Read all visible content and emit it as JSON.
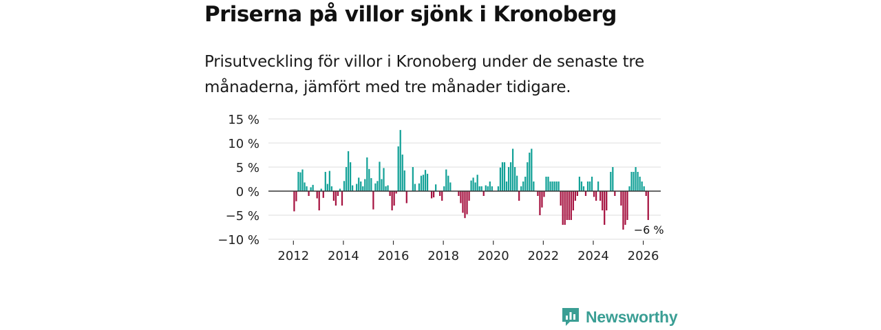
{
  "title": "Priserna på villor sjönk i Kronoberg",
  "subtitle": "Prisutveckling för villor i Kronoberg under de senaste tre månaderna, jämfört med tre månader tidigare.",
  "brand": {
    "name": "Newsworthy",
    "icon": "newsworthy-logo-icon",
    "color": "#3a9e94"
  },
  "colors": {
    "positive": "#12a197",
    "negative": "#a5113f",
    "grid": "#dddddd",
    "zero": "#333333"
  },
  "chart_data": {
    "type": "bar",
    "title": "Priserna på villor sjönk i Kronoberg",
    "xlabel": "",
    "ylabel": "",
    "ylim": [
      -10,
      15
    ],
    "xlim": [
      2011,
      2026.7
    ],
    "y_ticks": [
      15,
      10,
      5,
      0,
      -5,
      -10
    ],
    "y_tick_labels": [
      "15 %",
      "10 %",
      "5 %",
      "0 %",
      "−5 %",
      "−10 %"
    ],
    "x_ticks": [
      2012,
      2014,
      2016,
      2018,
      2020,
      2022,
      2024,
      2026
    ],
    "x_tick_labels": [
      "2012",
      "2014",
      "2016",
      "2018",
      "2020",
      "2022",
      "2024",
      "2026"
    ],
    "start": "2012-01",
    "frequency": "monthly",
    "last_value_label": "−6 %",
    "values": [
      -4.2,
      -2.1,
      4.0,
      3.9,
      4.5,
      1.8,
      1.0,
      -1.0,
      0.8,
      1.3,
      0.0,
      -1.5,
      -4.0,
      0.5,
      -1.4,
      4.0,
      1.5,
      4.2,
      1.0,
      -2.0,
      -3.0,
      -1.0,
      0.5,
      -3.0,
      2.1,
      5.0,
      8.3,
      6.0,
      1.2,
      0.0,
      1.5,
      2.8,
      2.0,
      1.0,
      2.5,
      7.0,
      4.6,
      2.7,
      -3.8,
      1.6,
      2.1,
      6.1,
      2.5,
      4.8,
      1.0,
      1.2,
      -1.0,
      -4.0,
      -3.0,
      -0.5,
      9.3,
      12.7,
      7.6,
      4.3,
      -2.5,
      0.0,
      0.0,
      5.0,
      1.5,
      0.0,
      1.6,
      3.2,
      3.4,
      4.4,
      3.6,
      0.0,
      -1.5,
      -1.3,
      1.4,
      0.0,
      -1.0,
      -2.0,
      1.0,
      4.5,
      3.2,
      1.8,
      0.0,
      0.0,
      0.0,
      -1.0,
      -2.5,
      -4.5,
      -5.6,
      -4.8,
      -2.0,
      2.2,
      2.8,
      1.8,
      3.4,
      1.0,
      1.0,
      -1.0,
      1.2,
      1.0,
      2.0,
      1.0,
      0.0,
      0.0,
      1.0,
      4.9,
      6.0,
      6.0,
      2.0,
      5.0,
      6.0,
      8.8,
      5.0,
      3.2,
      -2.0,
      1.0,
      2.0,
      3.0,
      6.0,
      8.0,
      8.8,
      2.0,
      0.0,
      -1.0,
      -5.0,
      -3.4,
      -1.2,
      3.0,
      3.0,
      2.0,
      2.0,
      2.0,
      2.0,
      2.0,
      -3.0,
      -7.0,
      -7.0,
      -6.0,
      -6.0,
      -6.0,
      -4.0,
      -2.0,
      -1.0,
      3.0,
      2.0,
      1.0,
      -1.0,
      2.0,
      2.0,
      3.0,
      -1.2,
      -2.0,
      2.0,
      -2.0,
      -4.0,
      -7.0,
      -4.0,
      0.0,
      4.0,
      5.0,
      -1.0,
      0.0,
      0.0,
      -3.0,
      -8.0,
      -7.0,
      -6.0,
      1.0,
      4.0,
      4.0,
      5.0,
      4.0,
      3.0,
      2.0,
      1.0,
      -1.0,
      -6.0
    ]
  }
}
